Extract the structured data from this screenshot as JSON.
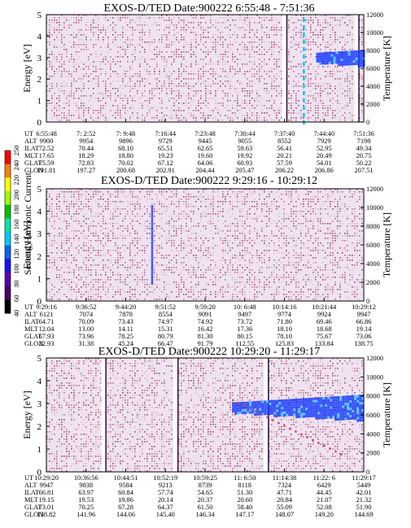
{
  "chart_data": [
    {
      "type": "heatmap",
      "title": "EXOS-D/TED   Date:900222  6:55:48 - 7:51:36",
      "ylabel": "Energy [eV]",
      "ylabel_right": "Temperature [K]",
      "ylim": [
        0,
        5
      ],
      "y_ticks": [
        "0",
        "1",
        "2",
        "3",
        "4",
        "5"
      ],
      "ylim_right": [
        0,
        12000
      ],
      "y_ticks_right": [
        "0",
        "2000",
        "4000",
        "6000",
        "8000",
        "10000",
        "12000"
      ],
      "table_rows": [
        {
          "label": "UT",
          "values": [
            "6:55:48",
            "7: 2:52",
            "7: 9:48",
            "7:16:44",
            "7:23:48",
            "7:30:44",
            "7:37:40",
            "7:44:40",
            "7:51:36"
          ]
        },
        {
          "label": "ALT",
          "values": [
            "9900",
            "9954",
            "9896",
            "9729",
            "9445",
            "9055",
            "8552",
            "7929",
            "7198"
          ]
        },
        {
          "label": "ILAT",
          "values": [
            "72.52",
            "70.44",
            "68.10",
            "65.51",
            "62.65",
            "59.63",
            "56.41",
            "52.95",
            "49.34"
          ]
        },
        {
          "label": "MLT",
          "values": [
            "17.65",
            "18.29",
            "18.80",
            "19.23",
            "19.60",
            "19.92",
            "20.21",
            "20.49",
            "20.75"
          ]
        },
        {
          "label": "GLAT",
          "values": [
            "75.59",
            "72.83",
            "70.02",
            "67.12",
            "64.06",
            "60.93",
            "57.59",
            "54.01",
            "50.22"
          ]
        },
        {
          "label": "GLON",
          "values": [
            "191.81",
            "197.27",
            "200.68",
            "202.91",
            "204.44",
            "205.47",
            "206.22",
            "206.86",
            "207.51"
          ]
        }
      ],
      "bands": [
        {
          "type": "gap",
          "x": 0.748
        },
        {
          "type": "gap",
          "x": 0.975
        },
        {
          "type": "cyan",
          "x": 0.808
        }
      ],
      "temperature_blob": {
        "x_start": 0.85,
        "y_center": 7200,
        "color": "#1a3cff"
      }
    },
    {
      "type": "heatmap",
      "title": "EXOS-D/TED   Date:900222  9:29:16 - 10:29:12",
      "ylabel": "Energy [eV]",
      "ylabel_right": "Temperature [K]",
      "ylim": [
        0,
        5
      ],
      "y_ticks": [
        "0",
        "1",
        "2",
        "3",
        "4",
        "5"
      ],
      "ylim_right": [
        0,
        12000
      ],
      "y_ticks_right": [
        "0",
        "2000",
        "4000",
        "6000",
        "8000",
        "10000",
        "12000"
      ],
      "table_rows": [
        {
          "label": "UT",
          "values": [
            "9:29:16",
            "9:36:52",
            "9:44:20",
            "9:51:52",
            "9:59:20",
            "10: 6:48",
            "10:14:16",
            "10:21:44",
            "10:29:12"
          ]
        },
        {
          "label": "ALT",
          "values": [
            "6121",
            "7074",
            "7878",
            "8554",
            "9091",
            "9497",
            "9774",
            "9924",
            "9947"
          ]
        },
        {
          "label": "ILAT",
          "values": [
            "64.71",
            "70.09",
            "73.43",
            "74.97",
            "74.92",
            "73.72",
            "71.80",
            "69.46",
            "66.86"
          ]
        },
        {
          "label": "MLT",
          "values": [
            "12.04",
            "13.00",
            "14.11",
            "15.31",
            "16.42",
            "17.36",
            "18.10",
            "18.68",
            "19.14"
          ]
        },
        {
          "label": "GLAT",
          "values": [
            "67.93",
            "73.96",
            "78.25",
            "80.79",
            "81.30",
            "80.15",
            "78.10",
            "75.67",
            "73.06"
          ]
        },
        {
          "label": "GLON",
          "values": [
            "22.93",
            "31.38",
            "45.24",
            "66.47",
            "91.79",
            "112.55",
            "125.83",
            "133.84",
            "138.75"
          ]
        }
      ],
      "bands": [
        {
          "type": "blue",
          "x": 0.33
        }
      ]
    },
    {
      "type": "heatmap",
      "title": "EXOS-D/TED   Date:900222  10:29:20 - 11:29:17",
      "ylabel": "Energy [eV]",
      "ylabel_right": "Temperature [K]",
      "ylim": [
        0,
        5
      ],
      "y_ticks": [
        "0",
        "1",
        "2",
        "3",
        "4",
        "5"
      ],
      "ylim_right": [
        0,
        12000
      ],
      "y_ticks_right": [
        "0",
        "2000",
        "4000",
        "6000",
        "8000",
        "10000",
        "12000"
      ],
      "table_rows": [
        {
          "label": "UT",
          "values": [
            "10:29:20",
            "10:36:56",
            "10:44:51",
            "10:52:19",
            "10:59:25",
            "11: 6:50",
            "11:14:38",
            "11:22: 6",
            "11:29:17"
          ]
        },
        {
          "label": "ALT",
          "values": [
            "9947",
            "9838",
            "9584",
            "9213",
            "8739",
            "8118",
            "7324",
            "6429",
            "5449"
          ]
        },
        {
          "label": "ILAT",
          "values": [
            "66.81",
            "63.97",
            "60.84",
            "57.74",
            "54.65",
            "51.30",
            "47.71",
            "44.45",
            "42.01"
          ]
        },
        {
          "label": "MLT",
          "values": [
            "19.15",
            "19.53",
            "19.86",
            "20.14",
            "20.37",
            "20.60",
            "20.84",
            "21.07",
            "21.32"
          ]
        },
        {
          "label": "GLAT",
          "values": [
            "73.01",
            "70.25",
            "67.28",
            "64.37",
            "61.50",
            "58.40",
            "55.09",
            "52.08",
            "51.90"
          ]
        },
        {
          "label": "GLON",
          "values": [
            "138.82",
            "141.96",
            "144.06",
            "145.40",
            "146.34",
            "147.17",
            "148.07",
            "149.20",
            "144.69"
          ]
        }
      ],
      "bands": [
        {
          "type": "gap",
          "x": 0.178
        },
        {
          "type": "gap",
          "x": 0.405
        },
        {
          "type": "gap",
          "x": 0.69
        }
      ],
      "temperature_blob": {
        "x_start": 0.585,
        "y_center": 6800,
        "color": "#1a3cff"
      }
    }
  ],
  "colorbar": {
    "label": "Second Harmonic Current",
    "ticks": [
      "40",
      "60",
      "80",
      "100",
      "120",
      "140",
      "160",
      "180",
      "200",
      "220",
      "240",
      "250"
    ],
    "range": [
      40,
      250
    ],
    "colors": [
      "#000000",
      "#4b0066",
      "#5a00b0",
      "#1a10ff",
      "#0a60ff",
      "#00c8ff",
      "#00e8a0",
      "#00c000",
      "#a0ff00",
      "#ffff00",
      "#ff8000",
      "#ff0000"
    ]
  }
}
